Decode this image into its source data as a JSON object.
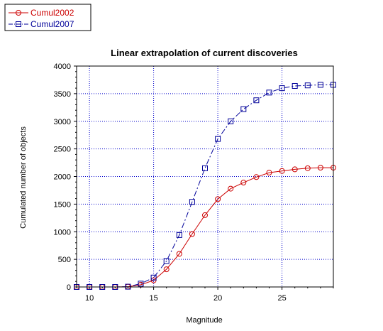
{
  "chart_data": {
    "type": "line",
    "title": "Linear extrapolation of current discoveries",
    "xlabel": "Magnitude",
    "ylabel": "Cumulated number of objects",
    "xlim": [
      9,
      29
    ],
    "ylim": [
      0,
      4000
    ],
    "x_ticks": [
      10,
      15,
      20,
      25
    ],
    "y_ticks": [
      0,
      500,
      1000,
      1500,
      2000,
      2500,
      3000,
      3500,
      4000
    ],
    "grid": true,
    "legend_position": "top-left, outside plot",
    "x": [
      9,
      10,
      11,
      12,
      13,
      14,
      15,
      16,
      17,
      18,
      19,
      20,
      21,
      22,
      23,
      24,
      25,
      26,
      27,
      28,
      29
    ],
    "series": [
      {
        "name": "Cumul2002",
        "color": "#cc0000",
        "marker": "circle",
        "line_style": "solid",
        "values": [
          0,
          0,
          0,
          0,
          5,
          40,
          120,
          320,
          600,
          960,
          1300,
          1590,
          1780,
          1890,
          1990,
          2070,
          2100,
          2130,
          2150,
          2160,
          2160
        ]
      },
      {
        "name": "Cumul2007",
        "color": "#000099",
        "marker": "square",
        "line_style": "dash-dot",
        "values": [
          0,
          0,
          0,
          0,
          5,
          60,
          170,
          470,
          940,
          1540,
          2150,
          2680,
          3000,
          3220,
          3380,
          3520,
          3600,
          3640,
          3650,
          3660,
          3660
        ]
      }
    ]
  }
}
